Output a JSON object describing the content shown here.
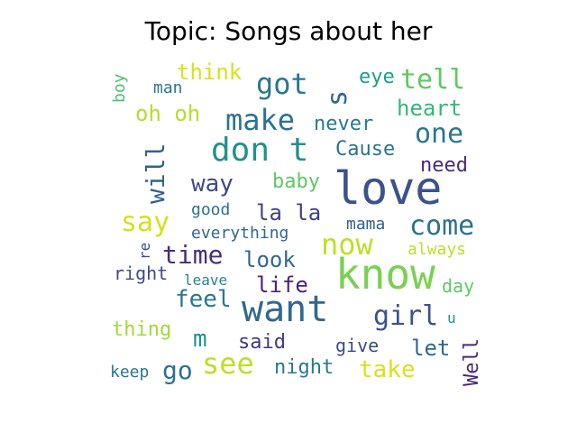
{
  "title": "Topic: Songs about her",
  "words": [
    {
      "text": "love",
      "size": 50,
      "color": "#3b528b"
    },
    {
      "text": "know",
      "size": 46,
      "color": "#7ad151"
    },
    {
      "text": "want",
      "size": 40,
      "color": "#31688e"
    },
    {
      "text": "don t",
      "size": 36,
      "color": "#21918c"
    },
    {
      "text": "make",
      "size": 32,
      "color": "#2c728e"
    },
    {
      "text": "got",
      "size": 32,
      "color": "#2a788e"
    },
    {
      "text": "tell",
      "size": 30,
      "color": "#5ec962"
    },
    {
      "text": "s",
      "size": 30,
      "color": "#31688e"
    },
    {
      "text": "now",
      "size": 32,
      "color": "#bddf26"
    },
    {
      "text": "say",
      "size": 30,
      "color": "#d2e21b"
    },
    {
      "text": "come",
      "size": 30,
      "color": "#2c728e"
    },
    {
      "text": "one",
      "size": 30,
      "color": "#2a788e"
    },
    {
      "text": "girl",
      "size": 30,
      "color": "#3b528b"
    },
    {
      "text": "see",
      "size": 32,
      "color": "#bddf26"
    },
    {
      "text": "time",
      "size": 28,
      "color": "#472f7d"
    },
    {
      "text": "will",
      "size": 28,
      "color": "#355f8d"
    },
    {
      "text": "go",
      "size": 28,
      "color": "#2c728e"
    },
    {
      "text": "way",
      "size": 26,
      "color": "#3e4a89"
    },
    {
      "text": "feel",
      "size": 26,
      "color": "#2a788e"
    },
    {
      "text": "take",
      "size": 26,
      "color": "#d8e219"
    },
    {
      "text": "heart",
      "size": 24,
      "color": "#35b779"
    },
    {
      "text": "think",
      "size": 24,
      "color": "#d8e219"
    },
    {
      "text": "oh oh",
      "size": 24,
      "color": "#b5de2b"
    },
    {
      "text": "la la",
      "size": 24,
      "color": "#424086"
    },
    {
      "text": "look",
      "size": 24,
      "color": "#31688e"
    },
    {
      "text": "life",
      "size": 24,
      "color": "#482576"
    },
    {
      "text": "Cause",
      "size": 22,
      "color": "#2c728e"
    },
    {
      "text": "never",
      "size": 22,
      "color": "#2a788e"
    },
    {
      "text": "let",
      "size": 24,
      "color": "#31688e"
    },
    {
      "text": "Well",
      "size": 22,
      "color": "#482878"
    },
    {
      "text": "baby",
      "size": 22,
      "color": "#5ec962"
    },
    {
      "text": "eye",
      "size": 22,
      "color": "#1f9e89"
    },
    {
      "text": "need",
      "size": 22,
      "color": "#472c7a"
    },
    {
      "text": "said",
      "size": 22,
      "color": "#443983"
    },
    {
      "text": "night",
      "size": 22,
      "color": "#2a788e"
    },
    {
      "text": "m",
      "size": 26,
      "color": "#21918c"
    },
    {
      "text": "thing",
      "size": 22,
      "color": "#a0da39"
    },
    {
      "text": "give",
      "size": 20,
      "color": "#3e4a89"
    },
    {
      "text": "day",
      "size": 20,
      "color": "#5ec962"
    },
    {
      "text": "right",
      "size": 20,
      "color": "#3e4a89"
    },
    {
      "text": "always",
      "size": 18,
      "color": "#bddf26"
    },
    {
      "text": "everything",
      "size": 18,
      "color": "#31688e"
    },
    {
      "text": "boy",
      "size": 18,
      "color": "#4ac16d"
    },
    {
      "text": "man",
      "size": 18,
      "color": "#2a788e"
    },
    {
      "text": "good",
      "size": 18,
      "color": "#2c728e"
    },
    {
      "text": "mama",
      "size": 18,
      "color": "#355f8d"
    },
    {
      "text": "keep",
      "size": 18,
      "color": "#2a788e"
    },
    {
      "text": "leave",
      "size": 16,
      "color": "#26828e"
    },
    {
      "text": "re",
      "size": 16,
      "color": "#3e4a89"
    },
    {
      "text": "u",
      "size": 16,
      "color": "#21918c"
    }
  ]
}
